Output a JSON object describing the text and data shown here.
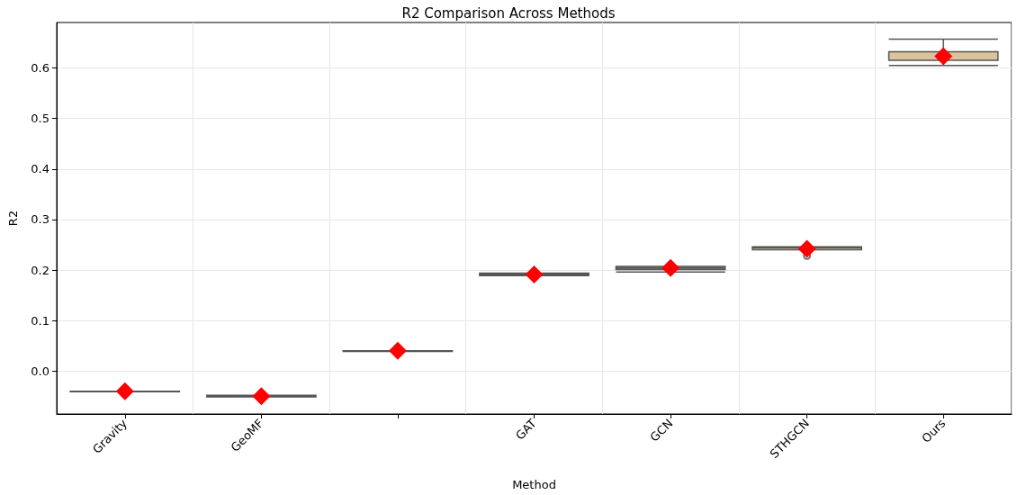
{
  "chart_data": {
    "type": "box",
    "title": "R2 Comparison Across Methods",
    "xlabel": "Method",
    "ylabel": "R2",
    "categories": [
      "Gravity",
      "GeoMF",
      null,
      "GAT",
      "GCN",
      "STHGCN",
      "Ours"
    ],
    "ylim": [
      -0.085,
      0.69
    ],
    "yticks": [
      {
        "value": 0,
        "label": "0.0"
      },
      0.1,
      0.2,
      0.3,
      0.4,
      0.5,
      0.6
    ],
    "grid": true,
    "series": [
      {
        "colors": [
          "#8a8fa0",
          "#9a8f9a",
          "#8f9a8f",
          "#9a8c9c",
          "#a8b08e",
          "#c8c08a",
          "#dcc39a"
        ],
        "boxes": [
          {
            "low": -0.041,
            "q1": -0.041,
            "median": -0.041,
            "q3": -0.04,
            "high": -0.04
          },
          {
            "low": -0.051,
            "q1": -0.051,
            "median": -0.05,
            "q3": -0.048,
            "high": -0.048
          },
          {
            "low": 0.039,
            "q1": 0.039,
            "median": 0.04,
            "q3": 0.04,
            "high": 0.04
          },
          {
            "low": 0.189,
            "q1": 0.189,
            "median": 0.191,
            "q3": 0.194,
            "high": 0.194
          },
          {
            "low": 0.196,
            "q1": 0.201,
            "median": 0.204,
            "q3": 0.207,
            "high": 0.207
          },
          {
            "low": 0.24,
            "q1": 0.24,
            "median": 0.244,
            "q3": 0.246,
            "high": 0.246,
            "outliers": [
              0.228
            ]
          },
          {
            "low": 0.605,
            "q1": 0.615,
            "median": 0.615,
            "q3": 0.632,
            "high": 0.657
          }
        ]
      },
      {
        "type": "scatter",
        "color": "#ff0000",
        "marker": "diamond",
        "values": [
          -0.04,
          -0.05,
          0.04,
          0.191,
          0.204,
          0.242,
          0.623
        ]
      }
    ]
  }
}
